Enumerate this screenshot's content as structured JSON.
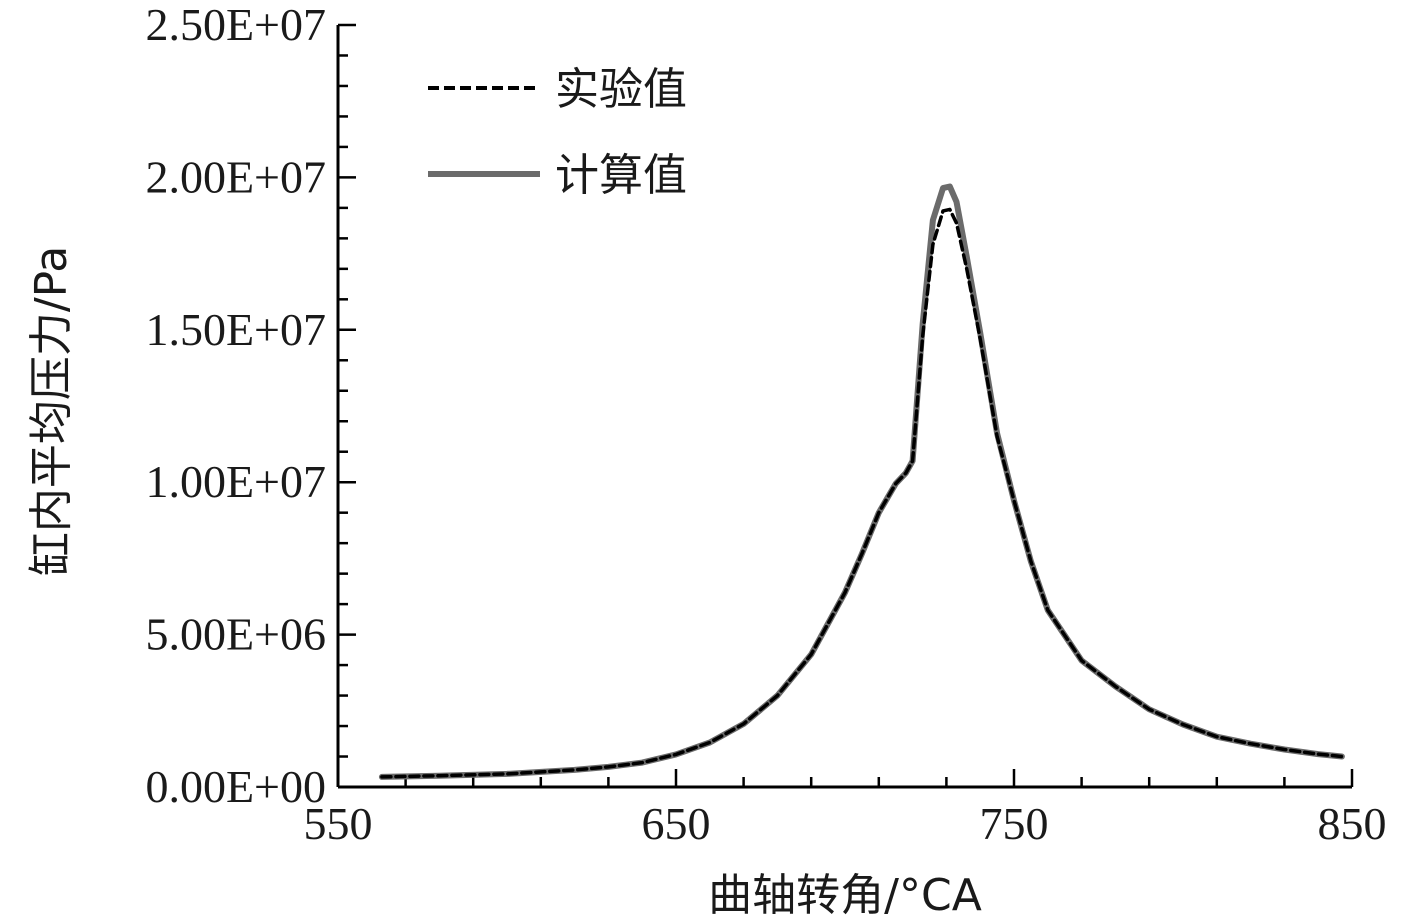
{
  "chart_data": {
    "type": "line",
    "title": "",
    "xlabel": "曲轴转角/°CA",
    "ylabel": "缸内平均压力/Pa",
    "xlim": [
      550,
      850
    ],
    "ylim": [
      0,
      25000000
    ],
    "x_ticks": [
      550,
      650,
      750,
      850
    ],
    "x_tick_labels": [
      "550",
      "650",
      "750",
      "850"
    ],
    "y_ticks": [
      0,
      5000000,
      10000000,
      15000000,
      20000000,
      25000000
    ],
    "y_tick_labels": [
      "0.00E+00",
      "5.00E+06",
      "1.00E+07",
      "1.50E+07",
      "2.00E+07",
      "2.50E+07"
    ],
    "grid": false,
    "legend_position": "top-left",
    "series": [
      {
        "name": "实验值",
        "style": "dashed",
        "color": "#000000",
        "points": [
          [
            563,
            330000
          ],
          [
            580,
            370000
          ],
          [
            600,
            430000
          ],
          [
            620,
            560000
          ],
          [
            630,
            660000
          ],
          [
            640,
            800000
          ],
          [
            650,
            1070000
          ],
          [
            660,
            1460000
          ],
          [
            670,
            2070000
          ],
          [
            680,
            3000000
          ],
          [
            690,
            4350000
          ],
          [
            700,
            6380000
          ],
          [
            705,
            7650000
          ],
          [
            710,
            9000000
          ],
          [
            715,
            9950000
          ],
          [
            718,
            10300000
          ],
          [
            720,
            10700000
          ],
          [
            723,
            14800000
          ],
          [
            726,
            17800000
          ],
          [
            729,
            18900000
          ],
          [
            731,
            18950000
          ],
          [
            733,
            18500000
          ],
          [
            736,
            17000000
          ],
          [
            740,
            14700000
          ],
          [
            745,
            11500000
          ],
          [
            750,
            9400000
          ],
          [
            755,
            7400000
          ],
          [
            760,
            5800000
          ],
          [
            770,
            4150000
          ],
          [
            780,
            3300000
          ],
          [
            790,
            2550000
          ],
          [
            800,
            2050000
          ],
          [
            810,
            1650000
          ],
          [
            820,
            1420000
          ],
          [
            830,
            1230000
          ],
          [
            840,
            1080000
          ],
          [
            847,
            1000000
          ]
        ]
      },
      {
        "name": "计算值",
        "style": "solid",
        "color": "#6b6b6b",
        "points": [
          [
            563,
            330000
          ],
          [
            580,
            370000
          ],
          [
            600,
            430000
          ],
          [
            620,
            560000
          ],
          [
            630,
            660000
          ],
          [
            640,
            800000
          ],
          [
            650,
            1070000
          ],
          [
            660,
            1460000
          ],
          [
            670,
            2070000
          ],
          [
            680,
            3000000
          ],
          [
            690,
            4350000
          ],
          [
            700,
            6380000
          ],
          [
            705,
            7650000
          ],
          [
            710,
            9000000
          ],
          [
            715,
            9950000
          ],
          [
            718,
            10300000
          ],
          [
            720,
            10700000
          ],
          [
            723,
            15200000
          ],
          [
            726,
            18600000
          ],
          [
            729,
            19650000
          ],
          [
            731,
            19700000
          ],
          [
            733,
            19200000
          ],
          [
            736,
            17400000
          ],
          [
            740,
            14900000
          ],
          [
            745,
            11600000
          ],
          [
            750,
            9400000
          ],
          [
            755,
            7400000
          ],
          [
            760,
            5800000
          ],
          [
            770,
            4150000
          ],
          [
            780,
            3300000
          ],
          [
            790,
            2550000
          ],
          [
            800,
            2050000
          ],
          [
            810,
            1650000
          ],
          [
            820,
            1420000
          ],
          [
            830,
            1230000
          ],
          [
            840,
            1080000
          ],
          [
            847,
            1000000
          ]
        ]
      }
    ]
  }
}
